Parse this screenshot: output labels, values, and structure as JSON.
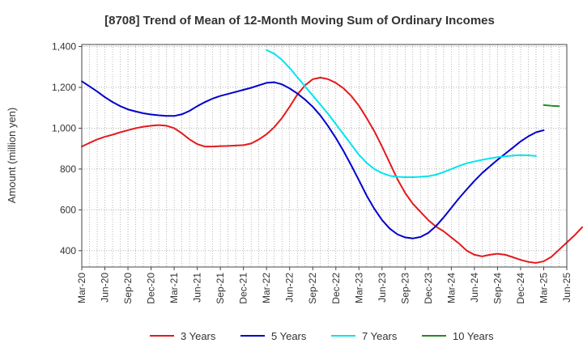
{
  "chart_data": {
    "type": "line",
    "title": "[8708]  Trend of Mean of 12-Month Moving Sum of Ordinary Incomes",
    "xlabel": "",
    "ylabel": "Amount (million yen)",
    "ylim": [
      320,
      1410
    ],
    "yticks": [
      400,
      600,
      800,
      1000,
      1200,
      1400
    ],
    "ytick_labels": [
      "400",
      "600",
      "800",
      "1,000",
      "1,200",
      "1,400"
    ],
    "x_tick_labels": [
      "Mar-20",
      "Jun-20",
      "Sep-20",
      "Dec-20",
      "Mar-21",
      "Jun-21",
      "Sep-21",
      "Dec-21",
      "Mar-22",
      "Jun-22",
      "Sep-22",
      "Dec-22",
      "Mar-23",
      "Jun-23",
      "Sep-23",
      "Dec-23",
      "Mar-24",
      "Jun-24",
      "Sep-24",
      "Dec-24",
      "Mar-25",
      "Jun-25"
    ],
    "x_months_total": 63,
    "series": [
      {
        "name": "3 Years",
        "color": "#e41a1c",
        "start_month": 0,
        "values": [
          910,
          928,
          945,
          958,
          968,
          980,
          990,
          1000,
          1007,
          1012,
          1015,
          1012,
          1000,
          975,
          945,
          922,
          910,
          910,
          912,
          913,
          915,
          917,
          925,
          945,
          970,
          1005,
          1050,
          1105,
          1165,
          1210,
          1240,
          1248,
          1240,
          1222,
          1195,
          1158,
          1110,
          1050,
          985,
          910,
          830,
          750,
          683,
          630,
          590,
          550,
          518,
          495,
          465,
          435,
          400,
          380,
          372,
          380,
          385,
          380,
          368,
          355,
          345,
          340,
          348,
          370,
          405,
          440,
          475,
          515
        ]
      },
      {
        "name": "5 Years",
        "color": "#0000cd",
        "start_month": 0,
        "values": [
          1230,
          1205,
          1180,
          1152,
          1128,
          1108,
          1092,
          1082,
          1073,
          1067,
          1063,
          1060,
          1060,
          1068,
          1085,
          1108,
          1128,
          1145,
          1158,
          1168,
          1178,
          1188,
          1198,
          1210,
          1222,
          1225,
          1215,
          1195,
          1170,
          1140,
          1105,
          1062,
          1010,
          952,
          888,
          818,
          745,
          670,
          605,
          550,
          508,
          480,
          465,
          460,
          467,
          487,
          520,
          563,
          610,
          657,
          700,
          742,
          780,
          813,
          845,
          875,
          905,
          935,
          960,
          980,
          990
        ]
      },
      {
        "name": "7 Years",
        "color": "#00e5ee",
        "start_month": 24,
        "values": [
          1383,
          1365,
          1335,
          1295,
          1250,
          1205,
          1160,
          1115,
          1070,
          1020,
          970,
          920,
          870,
          830,
          800,
          780,
          767,
          762,
          760,
          760,
          762,
          765,
          772,
          785,
          800,
          815,
          828,
          837,
          845,
          852,
          858,
          862,
          866,
          868,
          867,
          864
        ]
      },
      {
        "name": "10 Years",
        "color": "#228b22",
        "start_month": 60,
        "values": [
          1113,
          1110,
          1108
        ]
      }
    ],
    "legend": {
      "position": "bottom",
      "entries": [
        "3 Years",
        "5 Years",
        "7 Years",
        "10 Years"
      ]
    },
    "grid": true
  }
}
